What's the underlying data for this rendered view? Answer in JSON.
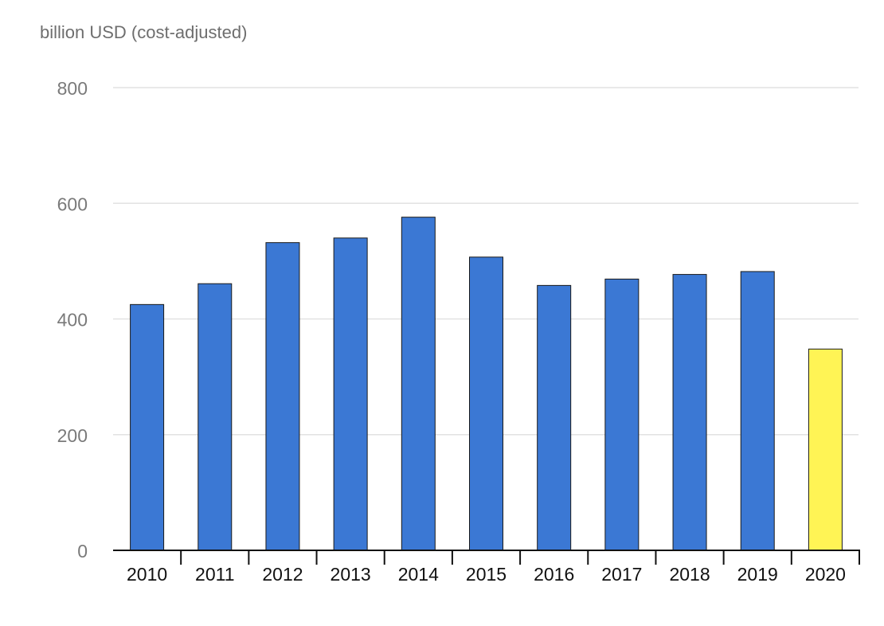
{
  "chart_data": {
    "type": "bar",
    "title": "",
    "xlabel": "",
    "ylabel": "billion USD (cost-adjusted)",
    "ylim": [
      0,
      800
    ],
    "yticks": [
      "0",
      "200",
      "400",
      "600",
      "800"
    ],
    "grid": true,
    "categories": [
      "2010",
      "2011",
      "2012",
      "2013",
      "2014",
      "2015",
      "2016",
      "2017",
      "2018",
      "2019",
      "2020"
    ],
    "values": [
      425,
      461,
      532,
      540,
      576,
      507,
      458,
      469,
      477,
      482,
      348
    ],
    "colors": {
      "bar": "#3b78d4",
      "highlight_bar": "#fff455",
      "bar_stroke": "#1a1a1a",
      "grid": "#e2e2e2",
      "tick_label": "#7a7a7a",
      "category_label": "#111111",
      "axis": "#111111"
    },
    "highlight_category": "2020"
  }
}
